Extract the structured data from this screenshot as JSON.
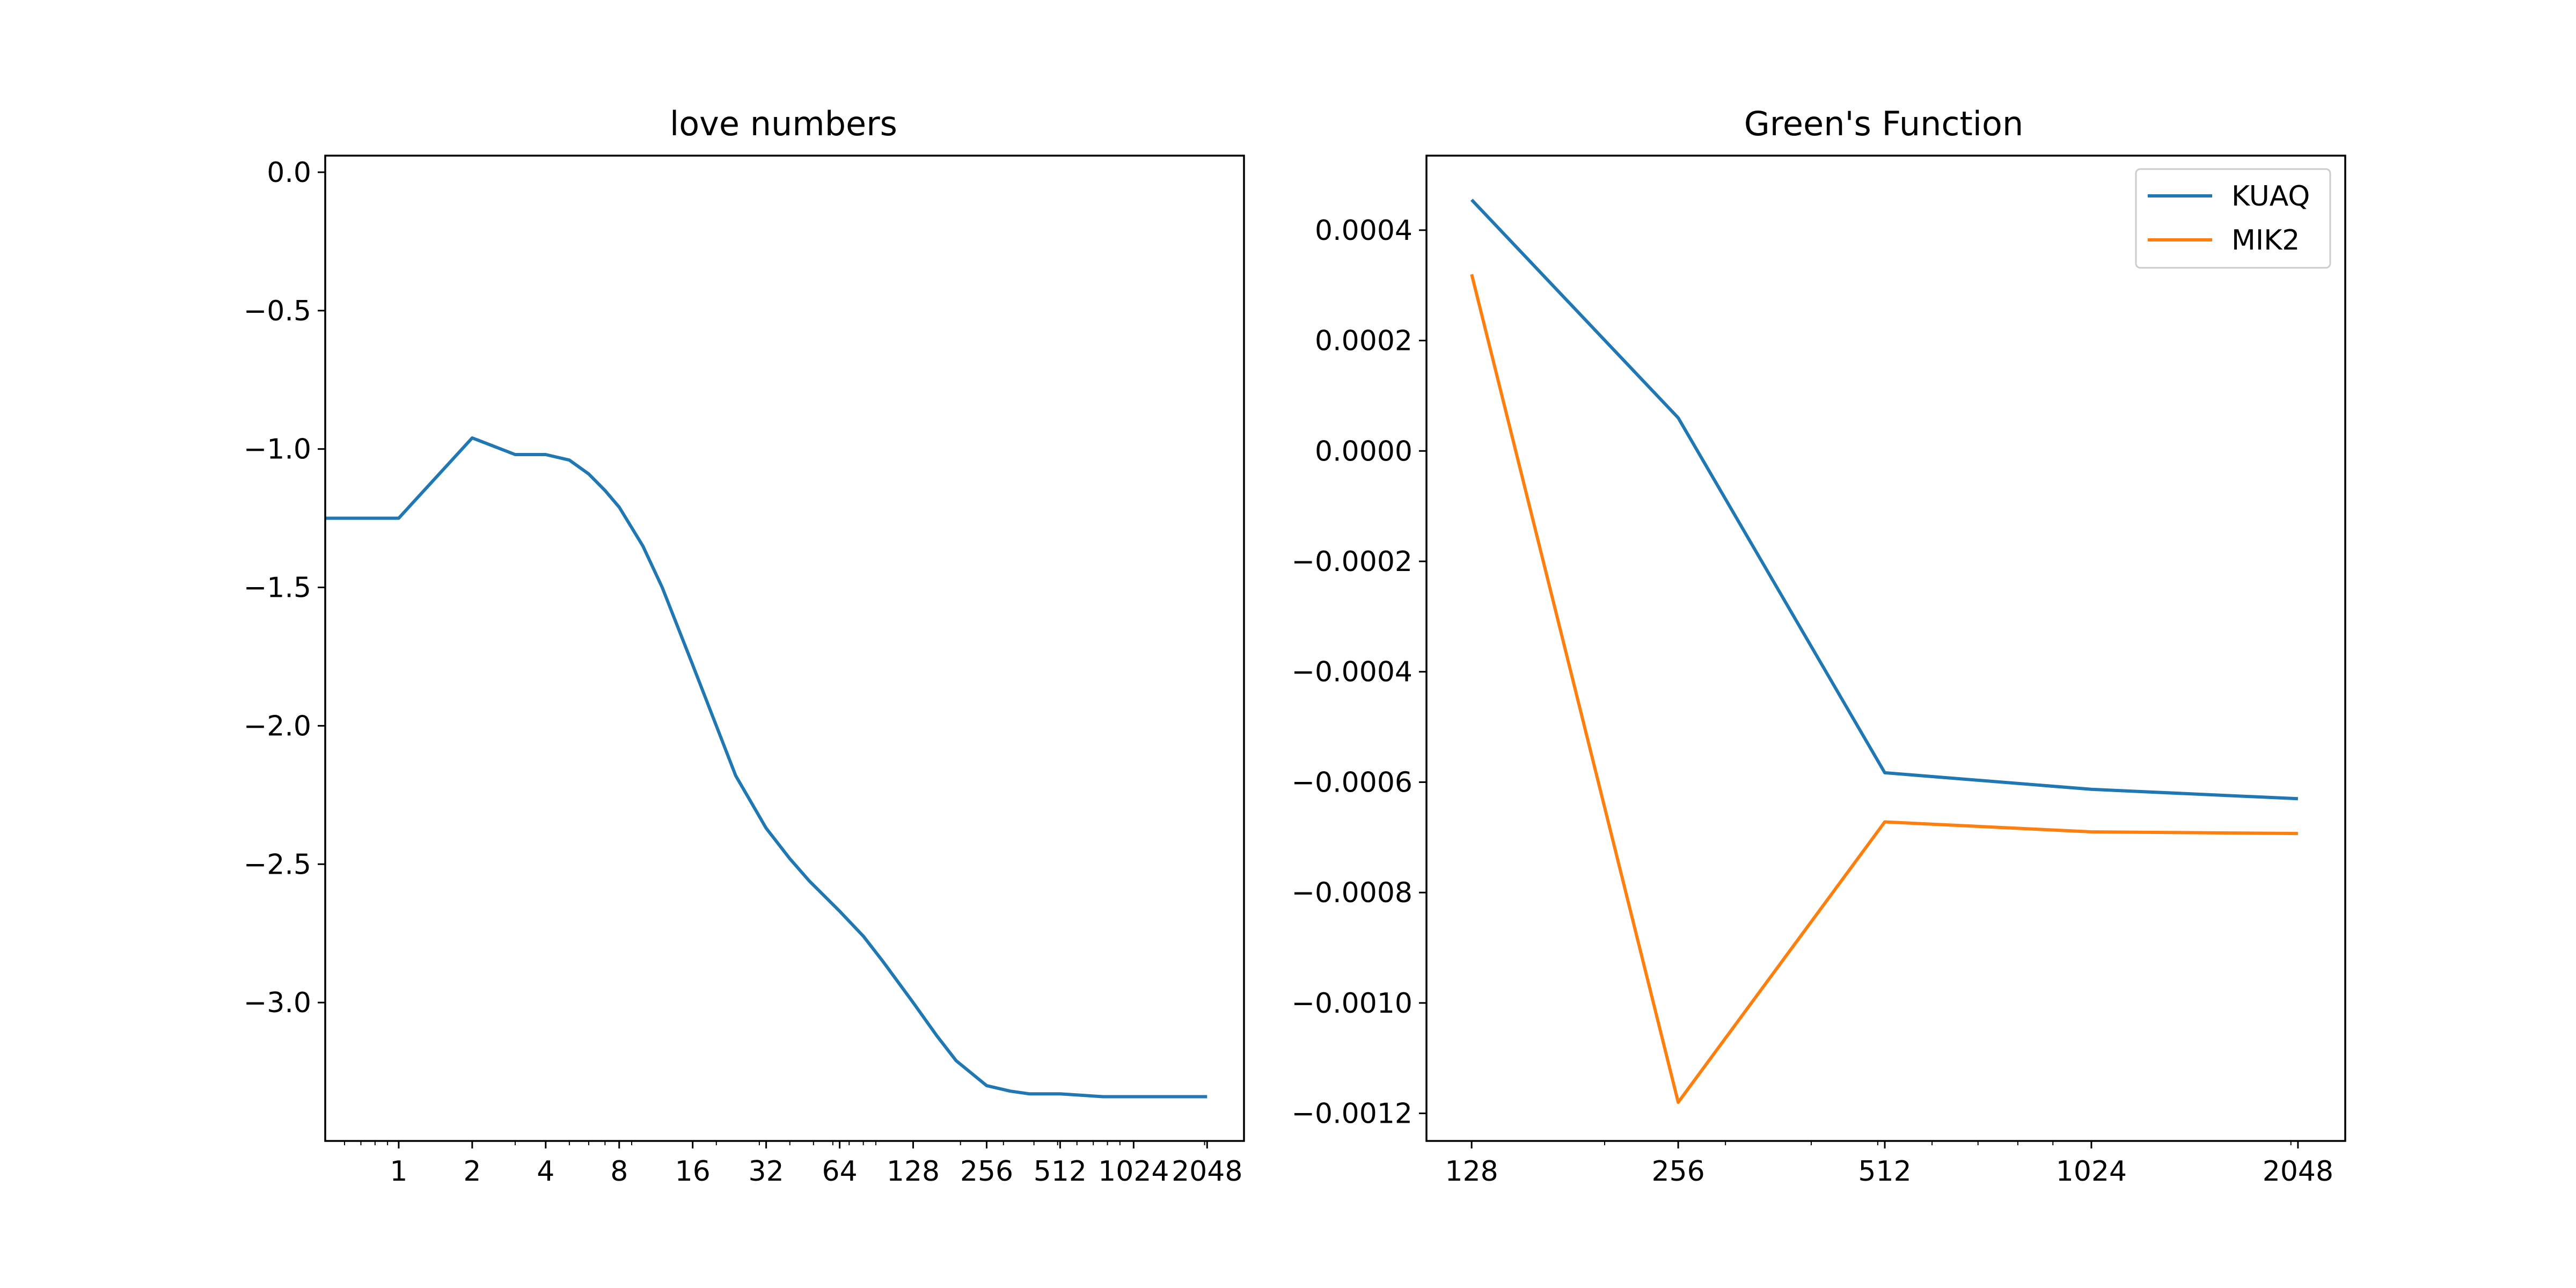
{
  "colors": {
    "series_1": "#1f77b4",
    "series_2": "#ff7f0e",
    "axes": "#000000",
    "background": "#ffffff",
    "legend_border": "#cccccc"
  },
  "chart_data": [
    {
      "type": "line",
      "title": "love numbers",
      "xlabel": "",
      "ylabel": "",
      "x_scale": "log2",
      "xlim": [
        0.5,
        2900
      ],
      "ylim": [
        -3.5,
        0.06
      ],
      "x_ticks": [
        1,
        2,
        4,
        8,
        16,
        32,
        64,
        128,
        256,
        512,
        1024,
        2048
      ],
      "x_tick_labels": [
        "1",
        "2",
        "4",
        "8",
        "16",
        "32",
        "64",
        "128",
        "256",
        "512",
        "1024",
        "2048"
      ],
      "y_ticks": [
        0.0,
        -0.5,
        -1.0,
        -1.5,
        -2.0,
        -2.5,
        -3.0
      ],
      "y_tick_labels": [
        "0.0",
        "−0.5",
        "−1.0",
        "−1.5",
        "−2.0",
        "−2.5",
        "−3.0"
      ],
      "grid": false,
      "legend": null,
      "series": [
        {
          "x": [
            0.5,
            1,
            2,
            3,
            4,
            5,
            6,
            7,
            8,
            10,
            12,
            16,
            20,
            24,
            32,
            40,
            48,
            64,
            80,
            96,
            128,
            160,
            192,
            256,
            320,
            384,
            512,
            768,
            1024,
            1536,
            2048
          ],
          "y": [
            -1.25,
            -1.25,
            -0.96,
            -1.02,
            -1.02,
            -1.04,
            -1.09,
            -1.15,
            -1.21,
            -1.35,
            -1.5,
            -1.78,
            -2.0,
            -2.18,
            -2.37,
            -2.48,
            -2.56,
            -2.67,
            -2.76,
            -2.85,
            -3.0,
            -3.12,
            -3.21,
            -3.3,
            -3.32,
            -3.33,
            -3.33,
            -3.34,
            -3.34,
            -3.34,
            -3.34
          ]
        }
      ]
    },
    {
      "type": "line",
      "title": "Green's Function",
      "xlabel": "",
      "ylabel": "",
      "x_scale": "log2",
      "xlim": [
        110,
        2400
      ],
      "ylim": [
        -0.00125,
        0.000535
      ],
      "x_ticks": [
        128,
        256,
        512,
        1024,
        2048
      ],
      "x_tick_labels": [
        "128",
        "256",
        "512",
        "1024",
        "2048"
      ],
      "y_ticks": [
        0.0004,
        0.0002,
        0.0,
        -0.0002,
        -0.0004,
        -0.0006,
        -0.0008,
        -0.001,
        -0.0012
      ],
      "y_tick_labels": [
        "0.0004",
        "0.0002",
        "0.0000",
        "−0.0002",
        "−0.0004",
        "−0.0006",
        "−0.0008",
        "−0.0010",
        "−0.0012"
      ],
      "grid": false,
      "legend": "top-right",
      "series": [
        {
          "name": "KUAQ",
          "x": [
            128,
            256,
            512,
            1024,
            2048
          ],
          "y": [
            0.000455,
            6e-05,
            -0.000583,
            -0.000613,
            -0.00063
          ]
        },
        {
          "name": "MIK2",
          "x": [
            128,
            256,
            512,
            1024,
            2048
          ],
          "y": [
            0.00032,
            -0.00118,
            -0.000672,
            -0.00069,
            -0.000693
          ]
        }
      ]
    }
  ]
}
